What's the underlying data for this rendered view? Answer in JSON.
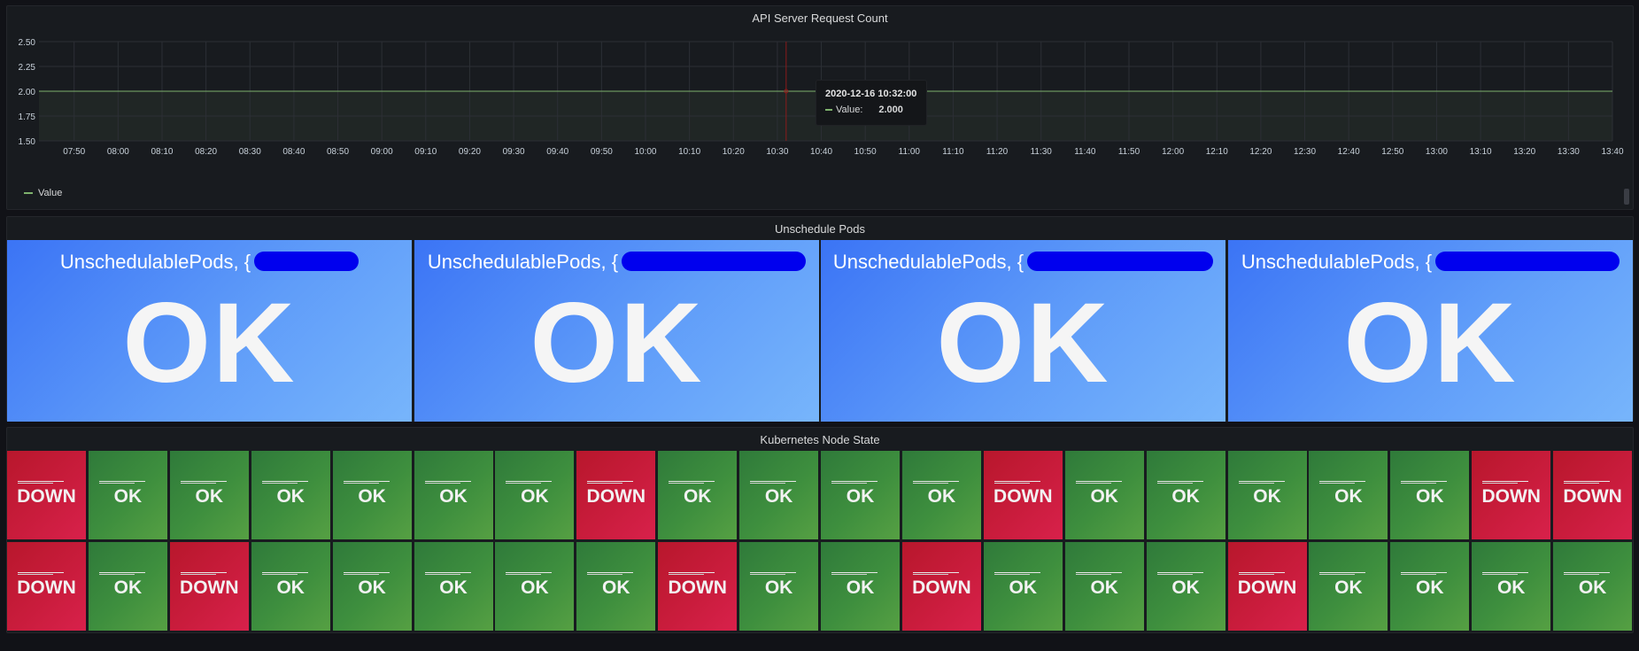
{
  "chart_panel": {
    "title": "API Server Request Count",
    "legend_label": "Value",
    "tooltip": {
      "time": "2020-12-16 10:32:00",
      "label": "Value:",
      "value": "2.000"
    }
  },
  "chart_data": {
    "type": "line",
    "title": "API Server Request Count",
    "xlabel": "",
    "ylabel": "",
    "ylim": [
      1.5,
      2.5
    ],
    "yticks": [
      "2.50",
      "2.25",
      "2.00",
      "1.75",
      "1.50"
    ],
    "xticks": [
      "07:50",
      "08:00",
      "08:10",
      "08:20",
      "08:30",
      "08:40",
      "08:50",
      "09:00",
      "09:10",
      "09:20",
      "09:30",
      "09:40",
      "09:50",
      "10:00",
      "10:10",
      "10:20",
      "10:30",
      "10:40",
      "10:50",
      "11:00",
      "11:10",
      "11:20",
      "11:30",
      "11:40",
      "11:50",
      "12:00",
      "12:10",
      "12:20",
      "12:30",
      "12:40",
      "12:50",
      "13:00",
      "13:10",
      "13:20",
      "13:30",
      "13:40"
    ],
    "series": [
      {
        "name": "Value",
        "x": [
          "07:42",
          "13:40"
        ],
        "values": [
          2.0,
          2.0
        ]
      }
    ],
    "hover_time": "10:32",
    "grid": true,
    "legend": "bottom-left",
    "colors": {
      "line": "#7eb26d",
      "crosshair": "#8b1a1a"
    }
  },
  "pods_panel": {
    "title": "Unschedule Pods",
    "cards": [
      {
        "title": "UnschedulablePods, {",
        "status": "OK"
      },
      {
        "title": "UnschedulablePods, {",
        "status": "OK"
      },
      {
        "title": "UnschedulablePods, {",
        "status": "OK"
      },
      {
        "title": "UnschedulablePods, {",
        "status": "OK"
      }
    ]
  },
  "nodes_panel": {
    "title": "Kubernetes Node State",
    "rows": [
      [
        "DOWN",
        "OK",
        "OK",
        "OK",
        "OK",
        "OK",
        "OK",
        "DOWN",
        "OK",
        "OK",
        "OK",
        "OK",
        "DOWN",
        "OK",
        "OK",
        "OK",
        "OK",
        "OK",
        "DOWN",
        "DOWN"
      ],
      [
        "DOWN",
        "OK",
        "DOWN",
        "OK",
        "OK",
        "OK",
        "OK",
        "OK",
        "DOWN",
        "OK",
        "OK",
        "DOWN",
        "OK",
        "OK",
        "OK",
        "DOWN",
        "OK",
        "OK",
        "OK",
        "OK"
      ]
    ]
  },
  "colors": {
    "ok": "#3e8f3e",
    "down": "#c91c3c",
    "pods_bg": "#5f9cf9",
    "redaction": "#0000ee"
  }
}
